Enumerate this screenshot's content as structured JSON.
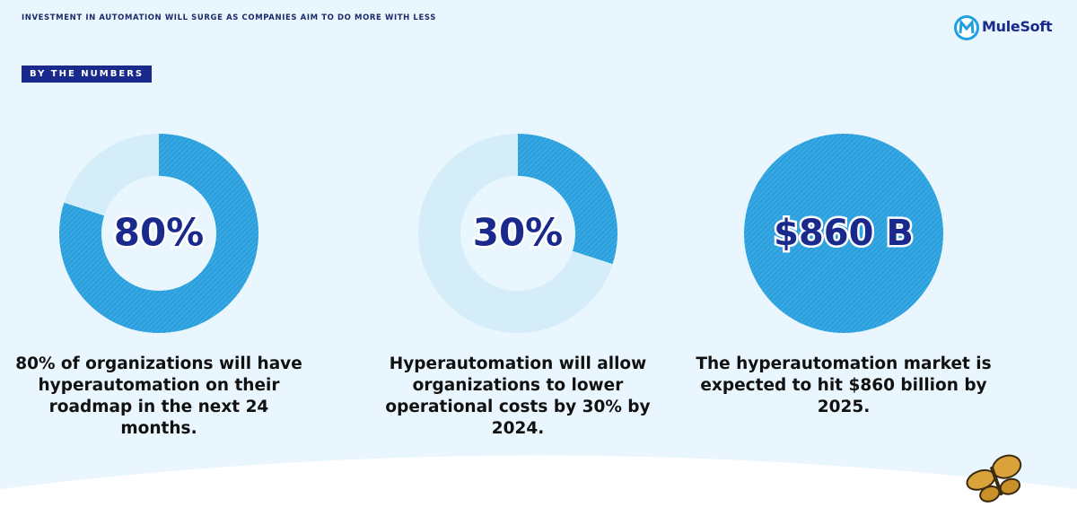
{
  "header": {
    "title": "INVESTMENT IN AUTOMATION WILL SURGE AS COMPANIES AIM TO DO MORE WITH LESS",
    "brand": "MuleSoft"
  },
  "section_label": "BY THE NUMBERS",
  "chart_data": [
    {
      "type": "donut",
      "values": [
        80,
        20
      ],
      "value_labels": [
        "80%",
        null
      ],
      "colors": [
        "#2aa0de",
        "#d4edf9"
      ],
      "caption": "80% of organizations will have hyperautomation on their roadmap in the next 24 months."
    },
    {
      "type": "donut",
      "values": [
        30,
        70
      ],
      "value_labels": [
        "30%",
        null
      ],
      "colors": [
        "#2aa0de",
        "#d4edf9"
      ],
      "caption": "Hyperautomation will allow organizations to lower operational costs by 30% by 2024."
    },
    {
      "type": "pie",
      "values": [
        860
      ],
      "value_labels": [
        "$860 B"
      ],
      "colors": [
        "#2aa0de"
      ],
      "caption": "The hyperautomation market is expected to hit $860 billion by 2025."
    }
  ]
}
